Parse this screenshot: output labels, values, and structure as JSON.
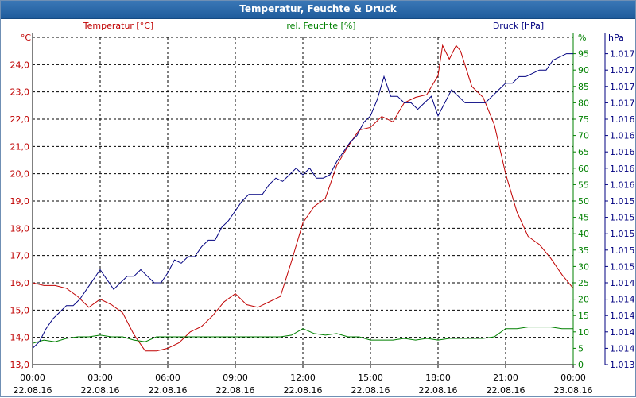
{
  "window": {
    "title": "Temperatur, Feuchte & Druck"
  },
  "colors": {
    "temperature": "#c00000",
    "humidity": "#008000",
    "pressure": "#000080",
    "grid": "#000000"
  },
  "chart_data": {
    "type": "line",
    "title": "Temperatur, Feuchte & Druck",
    "x_labels": [
      {
        "time": "00:00",
        "date": "22.08.16"
      },
      {
        "time": "03:00",
        "date": "22.08.16"
      },
      {
        "time": "06:00",
        "date": "22.08.16"
      },
      {
        "time": "09:00",
        "date": "22.08.16"
      },
      {
        "time": "12:00",
        "date": "22.08.16"
      },
      {
        "time": "15:00",
        "date": "22.08.16"
      },
      {
        "time": "18:00",
        "date": "22.08.16"
      },
      {
        "time": "21:00",
        "date": "22.08.16"
      },
      {
        "time": "00:00",
        "date": "23.08.16"
      }
    ],
    "x_range_hours": [
      0,
      24
    ],
    "axes": {
      "temperature": {
        "label": "Temperatur [°C]",
        "unit": "°C",
        "ylim": [
          13.0,
          25.0
        ],
        "ticks": [
          "13,0",
          "14,0",
          "15,0",
          "16,0",
          "17,0",
          "18,0",
          "19,0",
          "20,0",
          "21,0",
          "22,0",
          "23,0",
          "24,0"
        ]
      },
      "humidity": {
        "label": "rel. Feuchte [%]",
        "unit": "%",
        "ylim": [
          0,
          100
        ],
        "ticks": [
          "0",
          "5",
          "10",
          "15",
          "20",
          "25",
          "30",
          "35",
          "40",
          "45",
          "50",
          "55",
          "60",
          "65",
          "70",
          "75",
          "80",
          "85",
          "90",
          "95"
        ]
      },
      "pressure": {
        "label": "Druck [hPa]",
        "unit": "hPa",
        "ticks": [
          "1.013",
          "1.014",
          "1.014",
          "1.014",
          "1.014",
          "1.014",
          "1.015",
          "1.015",
          "1.015",
          "1.015",
          "1.015",
          "1.016",
          "1.016",
          "1.016",
          "1.016",
          "1.016",
          "1.017",
          "1.017",
          "1.017",
          "1.017"
        ]
      }
    },
    "series": [
      {
        "name": "Temperatur",
        "axis": "temperature",
        "color": "#c00000",
        "x": [
          0,
          0.5,
          1,
          1.5,
          2,
          2.5,
          3,
          3.5,
          4,
          4.5,
          5,
          5.5,
          6,
          6.5,
          7,
          7.5,
          8,
          8.5,
          9,
          9.5,
          10,
          10.5,
          11,
          11.5,
          12,
          12.5,
          13,
          13.5,
          14,
          14.5,
          15,
          15.5,
          16,
          16.5,
          17,
          17.5,
          18,
          18.2,
          18.5,
          18.8,
          19,
          19.5,
          20,
          20.5,
          21,
          21.5,
          22,
          22.5,
          23,
          23.5,
          24
        ],
        "y": [
          16.0,
          15.9,
          15.9,
          15.8,
          15.5,
          15.1,
          15.4,
          15.2,
          14.9,
          14.1,
          13.5,
          13.5,
          13.6,
          13.8,
          14.2,
          14.4,
          14.8,
          15.3,
          15.6,
          15.2,
          15.1,
          15.3,
          15.5,
          16.8,
          18.2,
          18.8,
          19.1,
          20.3,
          21.0,
          21.6,
          21.7,
          22.1,
          21.9,
          22.6,
          22.8,
          22.9,
          23.6,
          24.7,
          24.2,
          24.7,
          24.5,
          23.2,
          22.8,
          21.8,
          20.0,
          18.6,
          17.7,
          17.4,
          16.9,
          16.3,
          15.8
        ]
      },
      {
        "name": "rel. Feuchte",
        "axis": "humidity",
        "color": "#008000",
        "x": [
          0,
          0.5,
          1,
          1.5,
          2,
          2.5,
          3,
          3.5,
          4,
          4.5,
          5,
          5.5,
          6,
          6.5,
          7,
          7.5,
          8,
          8.5,
          9,
          9.5,
          10,
          10.5,
          11,
          11.5,
          12,
          12.5,
          13,
          13.5,
          14,
          14.5,
          15,
          15.5,
          16,
          16.5,
          17,
          17.5,
          18,
          18.5,
          19,
          19.5,
          20,
          20.5,
          21,
          21.5,
          22,
          22.5,
          23,
          23.5,
          24
        ],
        "y": [
          6.5,
          7.5,
          7.0,
          8.0,
          8.5,
          8.5,
          9.0,
          8.5,
          8.5,
          7.5,
          7.0,
          8.5,
          8.5,
          8.5,
          8.5,
          8.5,
          8.5,
          8.5,
          8.5,
          8.5,
          8.5,
          8.5,
          8.5,
          9.0,
          11.0,
          9.5,
          9.0,
          9.5,
          8.5,
          8.5,
          7.5,
          7.5,
          7.5,
          8.0,
          7.5,
          8.0,
          7.5,
          8.0,
          8.0,
          8.0,
          8.0,
          8.5,
          11.0,
          11.0,
          11.5,
          11.5,
          11.5,
          11.0,
          11.0
        ]
      },
      {
        "name": "Druck",
        "axis": "pressure",
        "color": "#000080",
        "x": [
          0,
          0.3,
          0.6,
          0.9,
          1.2,
          1.5,
          1.8,
          2.1,
          2.4,
          2.7,
          3,
          3.3,
          3.6,
          3.9,
          4.2,
          4.5,
          4.8,
          5.1,
          5.4,
          5.7,
          6,
          6.3,
          6.6,
          6.9,
          7.2,
          7.5,
          7.8,
          8.1,
          8.4,
          8.7,
          9,
          9.3,
          9.6,
          9.9,
          10.2,
          10.5,
          10.8,
          11.1,
          11.4,
          11.7,
          12,
          12.3,
          12.6,
          12.9,
          13.2,
          13.5,
          13.8,
          14.1,
          14.4,
          14.7,
          15,
          15.3,
          15.6,
          15.9,
          16.2,
          16.5,
          16.8,
          17.1,
          17.4,
          17.7,
          18,
          18.3,
          18.6,
          18.9,
          19.2,
          19.5,
          19.8,
          20.1,
          20.4,
          20.7,
          21,
          21.3,
          21.6,
          21.9,
          22.2,
          22.5,
          22.8,
          23.1,
          23.4,
          23.7,
          24
        ],
        "y": [
          5,
          7,
          11,
          14,
          16,
          18,
          18,
          20,
          23,
          26,
          29,
          26,
          23,
          25,
          27,
          27,
          29,
          27,
          25,
          25,
          28,
          32,
          31,
          33,
          33,
          36,
          38,
          38,
          42,
          44,
          47,
          50,
          52,
          52,
          52,
          55,
          57,
          56,
          58,
          60,
          58,
          60,
          57,
          57,
          58,
          62,
          65,
          68,
          70,
          74,
          76,
          81,
          88,
          82,
          82,
          80,
          80,
          78,
          80,
          82,
          76,
          80,
          84,
          82,
          80,
          80,
          80,
          80,
          82,
          84,
          86,
          86,
          88,
          88,
          89,
          90,
          90,
          93,
          94,
          95,
          95
        ]
      }
    ],
    "pressure_scale_note": "pressure series plotted on humidity-equivalent 0-100 vertical scale"
  }
}
